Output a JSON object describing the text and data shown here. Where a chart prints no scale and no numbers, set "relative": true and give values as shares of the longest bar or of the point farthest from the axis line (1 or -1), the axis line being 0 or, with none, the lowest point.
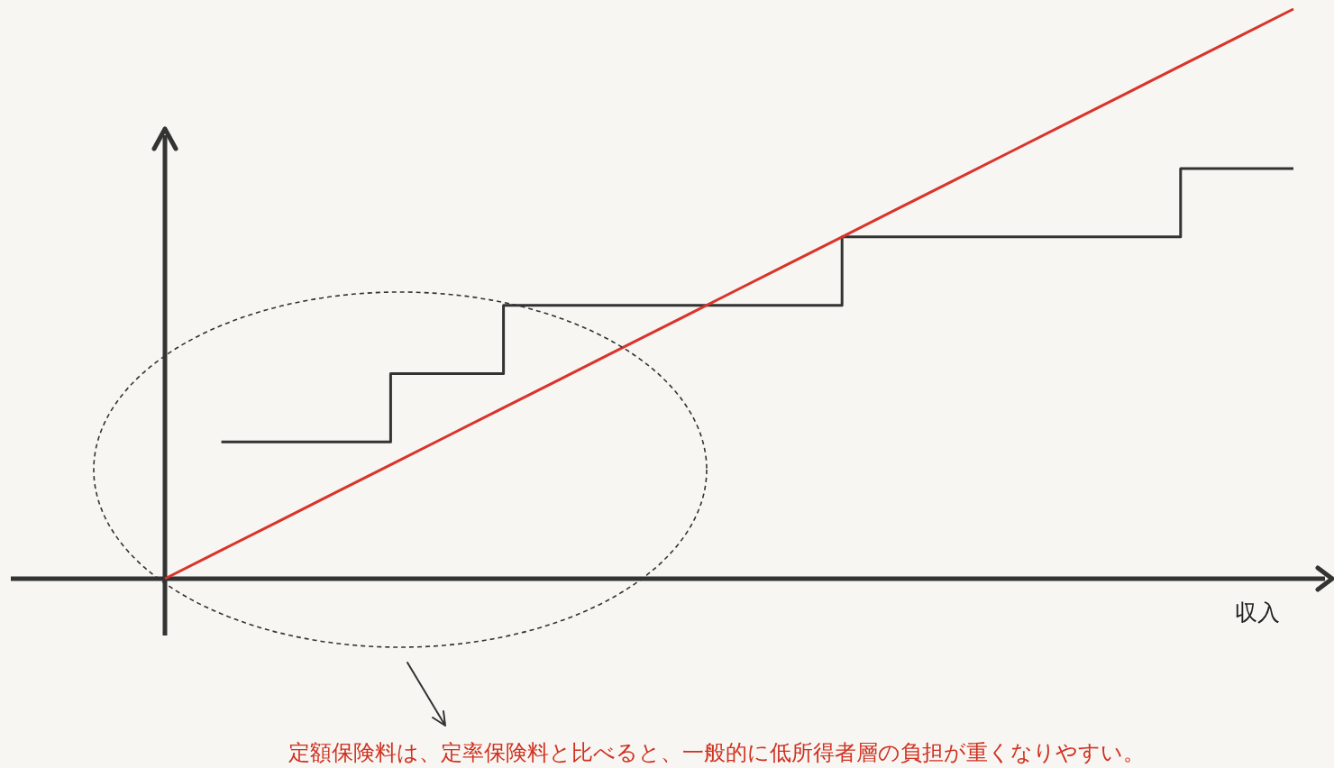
{
  "chart_data": {
    "type": "line",
    "relative": true,
    "xlabel": "収入",
    "annotations": [
      "定額保険料は、定率保険料と比べると、一般的に低所得者層の負担が重くなりやすい。"
    ],
    "categories": [
      null,
      null,
      null,
      null,
      null,
      null,
      null,
      null,
      null,
      null,
      null,
      null,
      null,
      null,
      null,
      null,
      null,
      null,
      null,
      null,
      null
    ],
    "series": [
      {
        "color": "#d9342b",
        "values": [
          0,
          0.05,
          0.1,
          0.15,
          0.2,
          0.25,
          0.3,
          0.35,
          0.4,
          0.45,
          0.5,
          0.55,
          0.6,
          0.65,
          0.7,
          0.75,
          0.8,
          0.85,
          0.9,
          0.95,
          1
        ]
      },
      {
        "type": "step",
        "color": "#333333",
        "values": [
          null,
          0.24,
          0.24,
          0.24,
          0.36,
          0.36,
          0.48,
          0.48,
          0.48,
          0.48,
          0.48,
          0.48,
          0.6,
          0.6,
          0.6,
          0.6,
          0.6,
          0.6,
          0.72,
          0.72,
          0.72
        ]
      }
    ]
  }
}
